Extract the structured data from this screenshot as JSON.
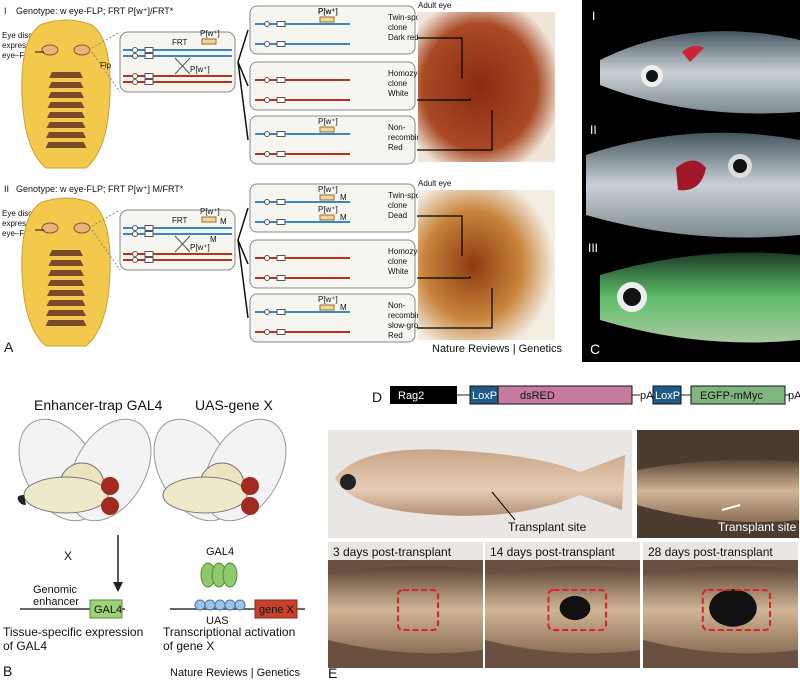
{
  "panel_a": {
    "letter": "A",
    "credit": "Nature Reviews | Genetics",
    "rows": [
      {
        "numeral": "I",
        "genotype": "Genotype: w eye-FLP; FRT P[w⁺]/FRT*",
        "disc_label": [
          "Eye discs",
          "expressing",
          "eye–FLP"
        ],
        "box": {
          "frt": "FRT",
          "top_marker": "P[w⁺]",
          "flp": "Flp",
          "bottom_marker": "P[w⁺]"
        },
        "clones": [
          {
            "markers": [
              "P[w⁺]",
              "P[w⁺]"
            ],
            "label": [
              "Twin-spot",
              "clone",
              "Dark red"
            ]
          },
          {
            "label": [
              "Homozygous",
              "clone",
              "White"
            ]
          },
          {
            "markers": [
              "P[w⁺]"
            ],
            "label": [
              "Non-",
              "recombinant",
              "Red"
            ]
          }
        ],
        "photo_label": "Adult eye"
      },
      {
        "numeral": "II",
        "genotype": "Genotype: w eye-FLP; FRT P[w⁺] M/FRT*",
        "disc_label": [
          "Eye discs",
          "expressing",
          "eye–FLP"
        ],
        "box": {
          "frt": "FRT",
          "top_marker": "P[w⁺]",
          "top_m": "M",
          "bottom_m": "M",
          "bottom_marker": "P[w⁺]"
        },
        "clones": [
          {
            "markers": [
              "P[w⁺]",
              "M",
              "P[w⁺]",
              "M"
            ],
            "label": [
              "Twin-spot",
              "clone",
              "Dead"
            ]
          },
          {
            "label": [
              "Homozygous",
              "clone",
              "White"
            ]
          },
          {
            "markers": [
              "P[w⁺]",
              "M"
            ],
            "label": [
              "Non-",
              "recombinant;",
              "slow-growing",
              "Red"
            ]
          }
        ],
        "photo_label": "Adult eye"
      }
    ]
  },
  "panel_c": {
    "letter": "C",
    "numerals": [
      "I",
      "II",
      "III"
    ]
  },
  "panel_b": {
    "letter": "B",
    "credit": "Nature Reviews | Genetics",
    "left_title": "Enhancer-trap GAL4",
    "right_title": "UAS-gene X",
    "cross": "X",
    "gal4_protein": "GAL4",
    "enhancer_label": [
      "Genomic",
      "enhancer"
    ],
    "gal4_gene": "GAL4",
    "uas": "UAS",
    "gene_x": "gene X",
    "left_caption": [
      "Tissue-specific expression",
      "of GAL4"
    ],
    "right_caption": [
      "Transcriptional activation",
      "of gene X"
    ]
  },
  "panel_d": {
    "letter": "D",
    "rag2": "Rag2",
    "loxp1": "LoxP",
    "dsred": "dsRED",
    "pa1": "pA",
    "loxp2": "LoxP",
    "egfp": "EGFP-mMyc",
    "pa2": "pA"
  },
  "panel_e": {
    "letter": "E",
    "transplant_left": "Transplant site",
    "transplant_right": "Transplant site",
    "timepoints": [
      "3 days post-transplant",
      "14 days post-transplant",
      "28 days post-transplant"
    ]
  }
}
